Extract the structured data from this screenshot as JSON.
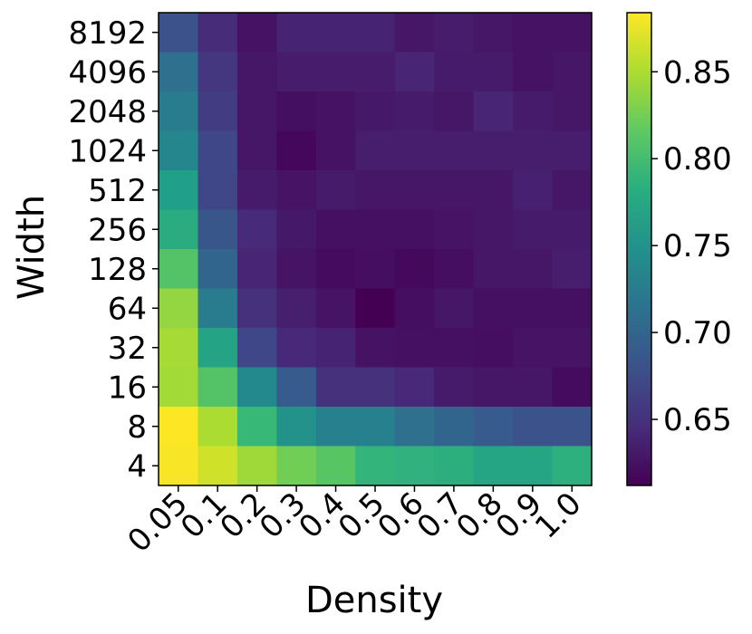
{
  "chart_data": {
    "type": "heatmap",
    "title": "",
    "xlabel": "Density",
    "ylabel": "Width",
    "x": [
      "0.05",
      "0.1",
      "0.2",
      "0.3",
      "0.4",
      "0.5",
      "0.6",
      "0.7",
      "0.8",
      "0.9",
      "1.0"
    ],
    "y": [
      "8192",
      "4096",
      "2048",
      "1024",
      "512",
      "256",
      "128",
      "64",
      "32",
      "16",
      "8",
      "4"
    ],
    "colormap": "viridis",
    "colorbar": {
      "range": [
        0.612,
        0.884
      ],
      "ticks": [
        "0.65",
        "0.70",
        "0.75",
        "0.80",
        "0.85"
      ]
    },
    "values": [
      [
        0.68,
        0.646,
        0.625,
        0.638,
        0.638,
        0.638,
        0.628,
        0.633,
        0.628,
        0.625,
        0.625
      ],
      [
        0.712,
        0.655,
        0.628,
        0.633,
        0.633,
        0.633,
        0.64,
        0.632,
        0.632,
        0.625,
        0.628
      ],
      [
        0.725,
        0.66,
        0.628,
        0.623,
        0.625,
        0.63,
        0.632,
        0.628,
        0.64,
        0.632,
        0.628
      ],
      [
        0.738,
        0.67,
        0.628,
        0.617,
        0.625,
        0.634,
        0.634,
        0.634,
        0.634,
        0.634,
        0.634
      ],
      [
        0.765,
        0.67,
        0.632,
        0.626,
        0.632,
        0.628,
        0.628,
        0.628,
        0.628,
        0.636,
        0.628
      ],
      [
        0.78,
        0.685,
        0.645,
        0.63,
        0.624,
        0.624,
        0.624,
        0.626,
        0.628,
        0.632,
        0.632
      ],
      [
        0.81,
        0.7,
        0.64,
        0.626,
        0.62,
        0.622,
        0.618,
        0.622,
        0.628,
        0.628,
        0.634
      ],
      [
        0.84,
        0.725,
        0.65,
        0.635,
        0.626,
        0.612,
        0.622,
        0.628,
        0.624,
        0.624,
        0.624
      ],
      [
        0.848,
        0.77,
        0.67,
        0.642,
        0.638,
        0.625,
        0.624,
        0.624,
        0.622,
        0.626,
        0.626
      ],
      [
        0.846,
        0.81,
        0.74,
        0.69,
        0.65,
        0.65,
        0.642,
        0.632,
        0.628,
        0.628,
        0.62
      ],
      [
        0.884,
        0.85,
        0.795,
        0.75,
        0.73,
        0.73,
        0.712,
        0.7,
        0.69,
        0.68,
        0.68
      ],
      [
        0.881,
        0.865,
        0.845,
        0.825,
        0.812,
        0.79,
        0.786,
        0.782,
        0.772,
        0.772,
        0.784
      ]
    ]
  }
}
